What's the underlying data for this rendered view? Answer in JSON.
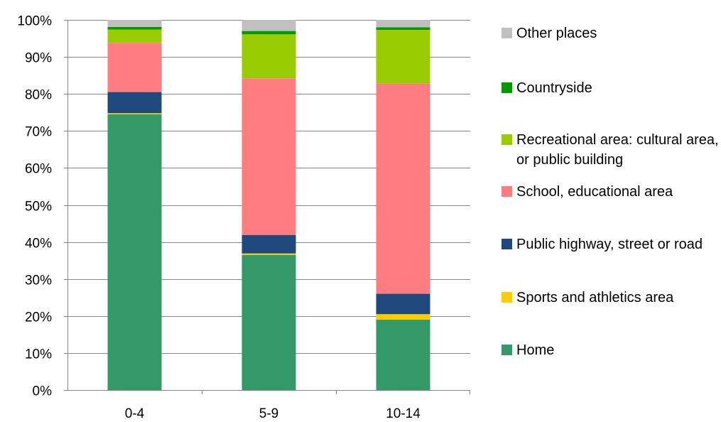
{
  "chart_data": {
    "type": "bar",
    "stacked": true,
    "percent": true,
    "categories": [
      "0-4",
      "5-9",
      "10-14"
    ],
    "ylim": [
      0,
      100
    ],
    "yticks": [
      "0%",
      "10%",
      "20%",
      "30%",
      "40%",
      "50%",
      "60%",
      "70%",
      "80%",
      "90%",
      "100%"
    ],
    "grid": true,
    "legend_position": "right",
    "series": [
      {
        "name": "Home",
        "color": "#339966",
        "values": [
          74.5,
          36.5,
          19.0
        ]
      },
      {
        "name": "Sports and athletics area",
        "color": "#ffcc00",
        "values": [
          0.3,
          0.4,
          1.5
        ]
      },
      {
        "name": "Public highway, street or road",
        "color": "#1f497d",
        "values": [
          5.7,
          5.0,
          5.5
        ]
      },
      {
        "name": "School, educational area",
        "color": "#ff7c80",
        "values": [
          13.3,
          42.3,
          56.8
        ]
      },
      {
        "name": "Recreational area: cultural area, or public building",
        "color": "#99cc00",
        "values": [
          3.6,
          11.9,
          14.5
        ]
      },
      {
        "name": "Countryside",
        "color": "#009900",
        "values": [
          0.7,
          0.9,
          0.7
        ]
      },
      {
        "name": "Other places",
        "color": "#c0c0c0",
        "values": [
          1.9,
          3.0,
          2.0
        ]
      }
    ]
  }
}
